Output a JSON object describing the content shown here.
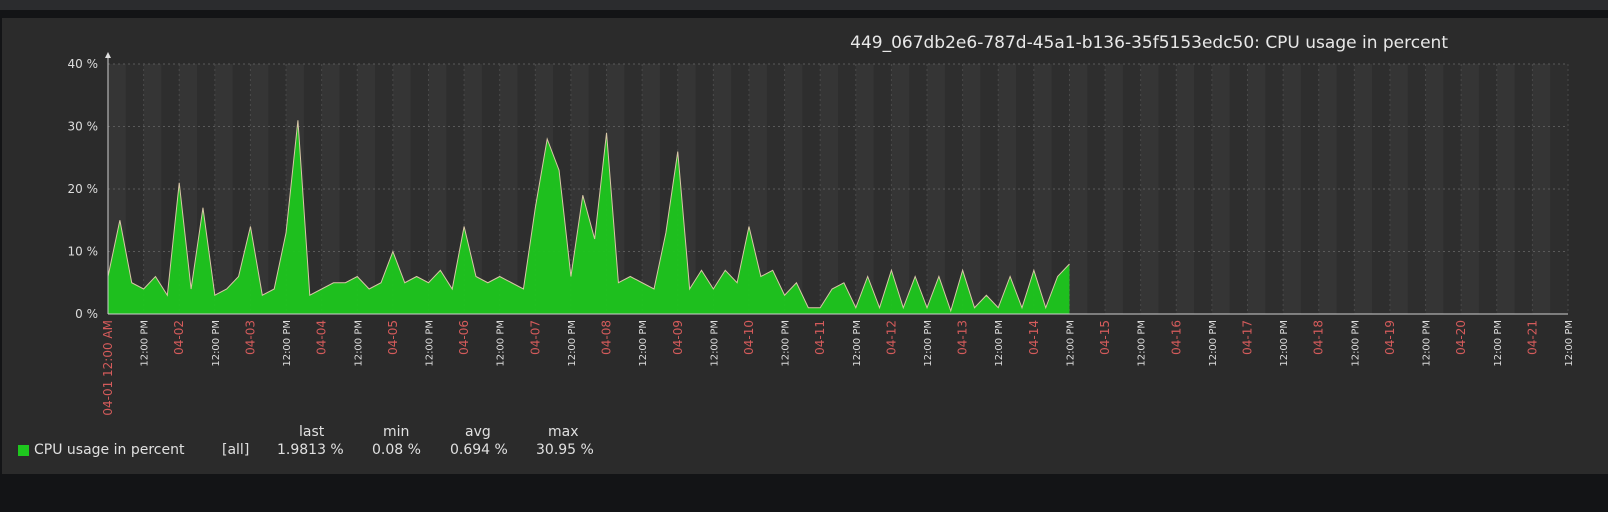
{
  "chart_data": {
    "type": "area",
    "title": "449_067db2e6-787d-45a1-b136-35f5153edc50: CPU usage in percent",
    "ylim": [
      0,
      40
    ],
    "y_unit": "%",
    "y_ticks": [
      0,
      10,
      20,
      30,
      40
    ],
    "y_tick_labels": [
      "0 %",
      "10 %",
      "20 %",
      "30 %",
      "40 %"
    ],
    "x_start": "2023-04-01T00:00",
    "x_end": "2023-04-21T12:00",
    "grid": true,
    "x_tick_labels": [
      {
        "t": "2023-04-01T00:00",
        "label": "04-01 12:00 AM",
        "major": true
      },
      {
        "t": "2023-04-01T12:00",
        "label": "12:00 PM",
        "major": false
      },
      {
        "t": "2023-04-02T00:00",
        "label": "04-02",
        "major": true
      },
      {
        "t": "2023-04-02T12:00",
        "label": "12:00 PM",
        "major": false
      },
      {
        "t": "2023-04-03T00:00",
        "label": "04-03",
        "major": true
      },
      {
        "t": "2023-04-03T12:00",
        "label": "12:00 PM",
        "major": false
      },
      {
        "t": "2023-04-04T00:00",
        "label": "04-04",
        "major": true
      },
      {
        "t": "2023-04-04T12:00",
        "label": "12:00 PM",
        "major": false
      },
      {
        "t": "2023-04-05T00:00",
        "label": "04-05",
        "major": true
      },
      {
        "t": "2023-04-05T12:00",
        "label": "12:00 PM",
        "major": false
      },
      {
        "t": "2023-04-06T00:00",
        "label": "04-06",
        "major": true
      },
      {
        "t": "2023-04-06T12:00",
        "label": "12:00 PM",
        "major": false
      },
      {
        "t": "2023-04-07T00:00",
        "label": "04-07",
        "major": true
      },
      {
        "t": "2023-04-07T12:00",
        "label": "12:00 PM",
        "major": false
      },
      {
        "t": "2023-04-08T00:00",
        "label": "04-08",
        "major": true
      },
      {
        "t": "2023-04-08T12:00",
        "label": "12:00 PM",
        "major": false
      },
      {
        "t": "2023-04-09T00:00",
        "label": "04-09",
        "major": true
      },
      {
        "t": "2023-04-09T12:00",
        "label": "12:00 PM",
        "major": false
      },
      {
        "t": "2023-04-10T00:00",
        "label": "04-10",
        "major": true
      },
      {
        "t": "2023-04-10T12:00",
        "label": "12:00 PM",
        "major": false
      },
      {
        "t": "2023-04-11T00:00",
        "label": "04-11",
        "major": true
      },
      {
        "t": "2023-04-11T12:00",
        "label": "12:00 PM",
        "major": false
      },
      {
        "t": "2023-04-12T00:00",
        "label": "04-12",
        "major": true
      },
      {
        "t": "2023-04-12T12:00",
        "label": "12:00 PM",
        "major": false
      },
      {
        "t": "2023-04-13T00:00",
        "label": "04-13",
        "major": true
      },
      {
        "t": "2023-04-13T12:00",
        "label": "12:00 PM",
        "major": false
      },
      {
        "t": "2023-04-14T00:00",
        "label": "04-14",
        "major": true
      },
      {
        "t": "2023-04-14T12:00",
        "label": "12:00 PM",
        "major": false
      },
      {
        "t": "2023-04-15T00:00",
        "label": "04-15",
        "major": true
      },
      {
        "t": "2023-04-15T12:00",
        "label": "12:00 PM",
        "major": false
      },
      {
        "t": "2023-04-16T00:00",
        "label": "04-16",
        "major": true
      },
      {
        "t": "2023-04-16T12:00",
        "label": "12:00 PM",
        "major": false
      },
      {
        "t": "2023-04-17T00:00",
        "label": "04-17",
        "major": true
      },
      {
        "t": "2023-04-17T12:00",
        "label": "12:00 PM",
        "major": false
      },
      {
        "t": "2023-04-18T00:00",
        "label": "04-18",
        "major": true
      },
      {
        "t": "2023-04-18T12:00",
        "label": "12:00 PM",
        "major": false
      },
      {
        "t": "2023-04-19T00:00",
        "label": "04-19",
        "major": true
      },
      {
        "t": "2023-04-19T12:00",
        "label": "12:00 PM",
        "major": false
      },
      {
        "t": "2023-04-20T00:00",
        "label": "04-20",
        "major": true
      },
      {
        "t": "2023-04-20T12:00",
        "label": "12:00 PM",
        "major": false
      },
      {
        "t": "2023-04-21T00:00",
        "label": "04-21",
        "major": true
      },
      {
        "t": "2023-04-21T12:00",
        "label": "12:00 PM",
        "major": false
      }
    ],
    "series": [
      {
        "name": "CPU usage in percent",
        "color": "#1ec71e",
        "x": [
          "2023-04-01T00:00",
          "2023-04-01T04:00",
          "2023-04-01T08:00",
          "2023-04-01T12:00",
          "2023-04-01T16:00",
          "2023-04-01T20:00",
          "2023-04-02T00:00",
          "2023-04-02T04:00",
          "2023-04-02T08:00",
          "2023-04-02T12:00",
          "2023-04-02T16:00",
          "2023-04-02T20:00",
          "2023-04-03T00:00",
          "2023-04-03T04:00",
          "2023-04-03T08:00",
          "2023-04-03T12:00",
          "2023-04-03T16:00",
          "2023-04-03T20:00",
          "2023-04-04T00:00",
          "2023-04-04T04:00",
          "2023-04-04T08:00",
          "2023-04-04T12:00",
          "2023-04-04T16:00",
          "2023-04-04T20:00",
          "2023-04-05T00:00",
          "2023-04-05T04:00",
          "2023-04-05T08:00",
          "2023-04-05T12:00",
          "2023-04-05T16:00",
          "2023-04-05T20:00",
          "2023-04-06T00:00",
          "2023-04-06T04:00",
          "2023-04-06T08:00",
          "2023-04-06T12:00",
          "2023-04-06T16:00",
          "2023-04-06T20:00",
          "2023-04-07T00:00",
          "2023-04-07T04:00",
          "2023-04-07T08:00",
          "2023-04-07T12:00",
          "2023-04-07T16:00",
          "2023-04-07T20:00",
          "2023-04-08T00:00",
          "2023-04-08T04:00",
          "2023-04-08T08:00",
          "2023-04-08T12:00",
          "2023-04-08T16:00",
          "2023-04-08T20:00",
          "2023-04-09T00:00",
          "2023-04-09T04:00",
          "2023-04-09T08:00",
          "2023-04-09T12:00",
          "2023-04-09T16:00",
          "2023-04-09T20:00",
          "2023-04-10T00:00",
          "2023-04-10T04:00",
          "2023-04-10T08:00",
          "2023-04-10T12:00",
          "2023-04-10T16:00",
          "2023-04-10T20:00",
          "2023-04-11T00:00",
          "2023-04-11T04:00",
          "2023-04-11T08:00",
          "2023-04-11T12:00",
          "2023-04-11T16:00",
          "2023-04-11T20:00",
          "2023-04-12T00:00",
          "2023-04-12T04:00",
          "2023-04-12T08:00",
          "2023-04-12T12:00",
          "2023-04-12T16:00",
          "2023-04-12T20:00",
          "2023-04-13T00:00",
          "2023-04-13T04:00",
          "2023-04-13T08:00",
          "2023-04-13T12:00",
          "2023-04-13T16:00",
          "2023-04-13T20:00",
          "2023-04-14T00:00",
          "2023-04-14T04:00",
          "2023-04-14T08:00",
          "2023-04-14T12:00"
        ],
        "y": [
          6,
          15,
          5,
          4,
          6,
          3,
          21,
          4,
          17,
          3,
          4,
          6,
          14,
          3,
          4,
          13,
          31,
          3,
          4,
          5,
          5,
          6,
          4,
          5,
          10,
          5,
          6,
          5,
          7,
          4,
          14,
          6,
          5,
          6,
          5,
          4,
          17,
          28,
          23,
          6,
          19,
          12,
          29,
          5,
          6,
          5,
          4,
          13,
          26,
          4,
          7,
          4,
          7,
          5,
          14,
          6,
          7,
          3,
          5,
          1,
          1,
          4,
          5,
          1,
          6,
          1,
          7,
          1,
          6,
          1,
          6,
          0.5,
          7,
          1,
          3,
          1,
          6,
          1,
          7,
          1,
          6,
          8
        ]
      }
    ]
  },
  "legend": {
    "headers": {
      "last": "last",
      "min": "min",
      "avg": "avg",
      "max": "max"
    },
    "rows": [
      {
        "name": "CPU usage in percent",
        "scope": "[all]",
        "last": "1.9813 %",
        "min": "0.08 %",
        "avg": "0.694 %",
        "max": "30.95 %",
        "color": "#1ec71e"
      }
    ]
  }
}
